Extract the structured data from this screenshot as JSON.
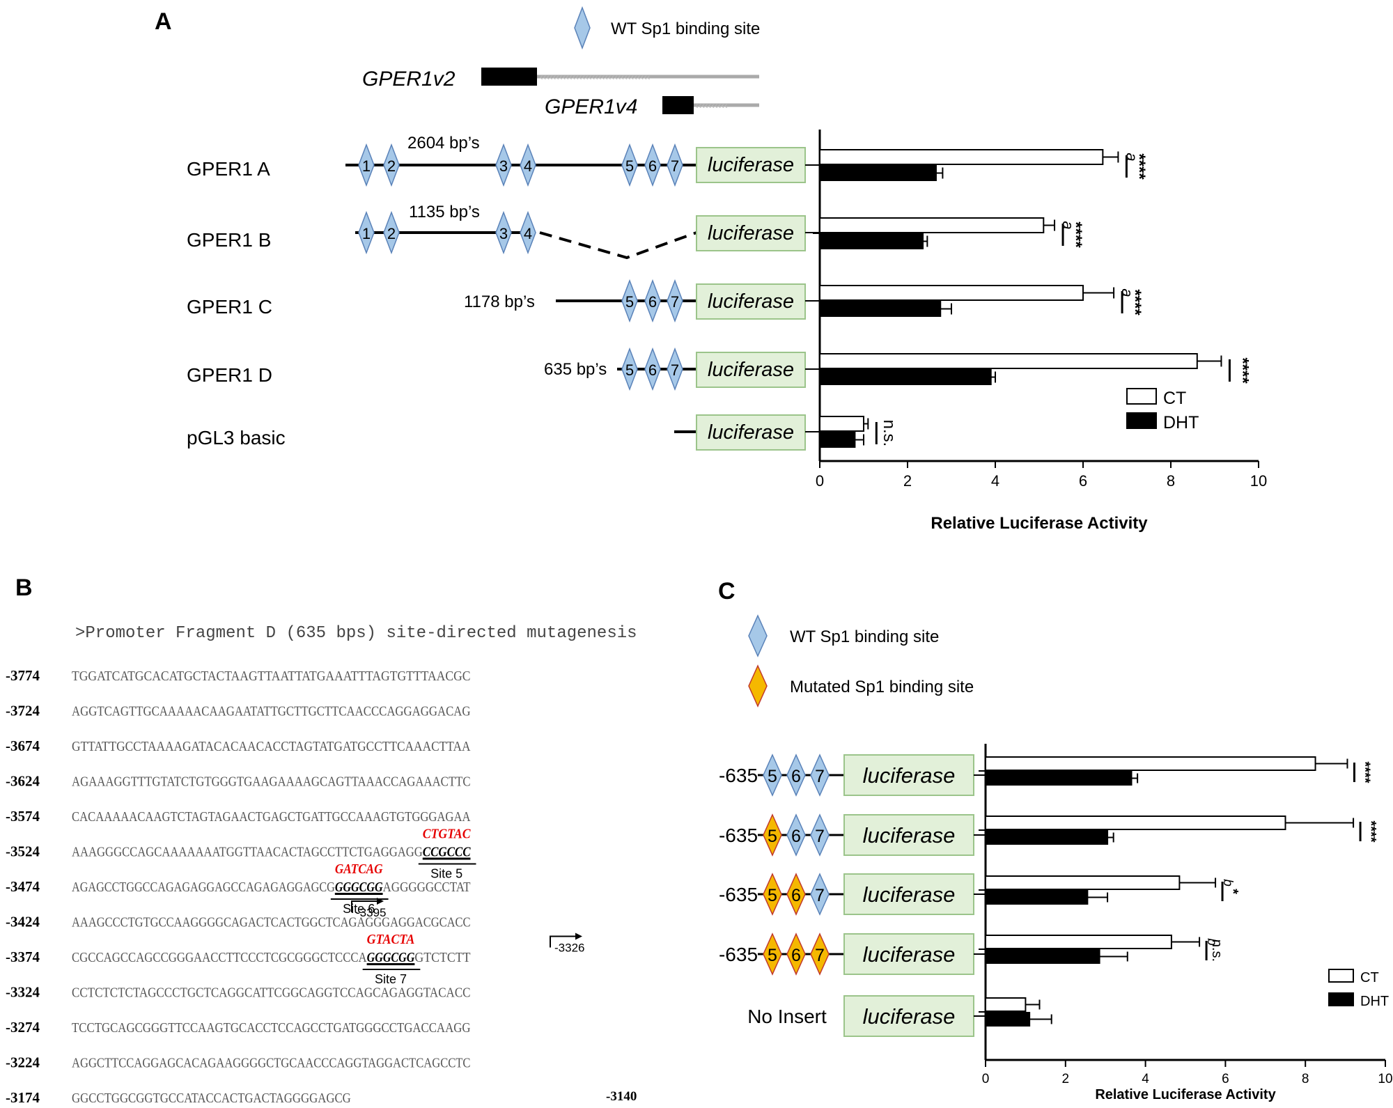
{
  "panels": {
    "a": "A",
    "b": "B",
    "c": "C"
  },
  "panel_a": {
    "legend_wt": "WT Sp1 binding site",
    "isoform_v2": "GPER1v2",
    "isoform_v4": "GPER1v4",
    "reporter": "luciferase",
    "construct_labels": [
      "GPER1 A",
      "GPER1 B",
      "GPER1 C",
      "GPER1 D",
      "pGL3 basic"
    ],
    "fragment_sizes": [
      "2604 bp’s",
      "1135 bp’s",
      "1178 bp’s",
      "635 bp’s"
    ],
    "site_numbers": [
      "1",
      "2",
      "3",
      "4",
      "5",
      "6",
      "7"
    ]
  },
  "panel_b": {
    "header": ">Promoter Fragment D (635 bps) site-directed mutagenesis",
    "rows": [
      {
        "pos": "-3774",
        "seq": "TGGATCATGCACATGCTACTAAGTTAATTATGAAATTTAGTGTTTAACGC"
      },
      {
        "pos": "-3724",
        "seq": "AGGTCAGTTGCAAAAACAAGAATATTGCTTGCTTCAACCCAGGAGGACAG"
      },
      {
        "pos": "-3674",
        "seq": "GTTATTGCCTAAAAGATACACAACACCTAGTATGATGCCTTCAAACTTAA"
      },
      {
        "pos": "-3624",
        "seq": "AGAAAGGTTTGTATCTGTGGGTGAAGAAAAGCAGTTAAACCAGAAACTTC"
      },
      {
        "pos": "-3574",
        "seq": "CACAAAAACAAGTCTAGTAGAACTGAGCTGATTGCCAAAGTGTGGGAGAA"
      },
      {
        "pos": "-3524",
        "seq": "AAAGGGCCAGCAAAAAAATGGTTAACACTAGCCTTCTGAGGAGG",
        "site": "CCGCCC"
      },
      {
        "pos": "-3474",
        "seq": "AGAGCCTGGCCAGAGAGGAGCCAGAGAGGAGCG",
        "site": "GGGCGG",
        "seq_after": "AGGGGGCCTAT"
      },
      {
        "pos": "-3424",
        "seq": "AAAGCCCTGTGCCAAGGGGCAGACTCACTGGCTCAGAGGGAGGACGCACC"
      },
      {
        "pos": "-3374",
        "seq": "CGCCAGCCAGCCGGGAACCTTCCCTCGCGGGCTCCCA",
        "site": "GGGCGG",
        "seq_after": "GTCTCTT"
      },
      {
        "pos": "-3324",
        "seq": "CCTCTCTCTAGCCCTGCTCAGGCATTCGGCAGGTCCAGCAGAGGTACACC"
      },
      {
        "pos": "-3274",
        "seq": "TCCTGCAGCGGGTTCCAAGTGCACCTCCAGCCTGATGGGCCTGACCAAGG"
      },
      {
        "pos": "-3224",
        "seq": "AGGCTTCCAGGAGCACAGAAGGGGCTGCAACCCAGGTAGGACTCAGCCTC"
      },
      {
        "pos": "-3174",
        "seq": "GGCCTGGCGGTGCCATACCACTGACTAGGGGAGCG"
      }
    ],
    "end_pos": "-3140",
    "mutations": [
      "CTGTAC",
      "GATCAG",
      "GTACTA"
    ],
    "site_labels": [
      "Site 5",
      "Site 6",
      "Site 7"
    ],
    "tss": [
      "-3395",
      "-3326"
    ]
  },
  "panel_c": {
    "legend_wt": "WT Sp1 binding site",
    "legend_mut": "Mutated Sp1 binding site",
    "reporter": "luciferase",
    "row_labels": [
      "-635",
      "-635",
      "-635",
      "-635",
      "No Insert"
    ],
    "sites": [
      "5",
      "6",
      "7"
    ],
    "mutated_counts": [
      0,
      1,
      2,
      3
    ]
  },
  "colors": {
    "wt_diamond": "#a6c8e8",
    "wt_stroke": "#5a82b8",
    "mut_diamond": "#f5b800",
    "mut_stroke": "#c0392b",
    "luciferase_box": "#e2f0d9",
    "luciferase_stroke": "#9bc48a",
    "ct": "#ffffff",
    "dht": "#000000",
    "mutation_text": "#e60000"
  },
  "chart_data": [
    {
      "type": "bar",
      "orientation": "horizontal",
      "categories": [
        "GPER1 A",
        "GPER1 B",
        "GPER1 C",
        "GPER1 D",
        "pGL3 basic"
      ],
      "series": [
        {
          "name": "CT",
          "values": [
            6.45,
            5.1,
            6.0,
            8.6,
            1.0
          ],
          "errors": [
            0.35,
            0.25,
            0.7,
            0.55,
            0.1
          ]
        },
        {
          "name": "DHT",
          "values": [
            2.65,
            2.35,
            2.75,
            3.9,
            0.8
          ],
          "errors": [
            0.15,
            0.1,
            0.25,
            0.1,
            0.2
          ]
        }
      ],
      "xlabel": "Relative Luciferase Activity",
      "xlim": [
        0,
        10
      ],
      "xticks": [
        "0",
        "2",
        "4",
        "6",
        "8",
        "10"
      ],
      "significance": [
        "****",
        "****",
        "****",
        "****",
        "n.s."
      ],
      "letters": [
        "a",
        "a",
        "a",
        "",
        ""
      ],
      "legend": "right"
    },
    {
      "type": "bar",
      "orientation": "horizontal",
      "categories": [
        "-635 WT",
        "-635 mut5",
        "-635 mut5,6",
        "-635 mut5,6,7",
        "No Insert"
      ],
      "series": [
        {
          "name": "CT",
          "values": [
            8.25,
            7.5,
            4.85,
            4.65,
            1.0
          ],
          "errors": [
            0.8,
            1.7,
            0.9,
            0.7,
            0.35
          ]
        },
        {
          "name": "DHT",
          "values": [
            3.65,
            3.05,
            2.55,
            2.85,
            1.1
          ],
          "errors": [
            0.15,
            0.15,
            0.5,
            0.7,
            0.55
          ]
        }
      ],
      "xlabel": "Relative Luciferase Activity",
      "xlim": [
        0,
        10
      ],
      "xticks": [
        "0",
        "2",
        "4",
        "6",
        "8",
        "10"
      ],
      "significance": [
        "****",
        "****",
        "*",
        "n.s.",
        ""
      ],
      "letters": [
        "",
        "",
        "b",
        "b",
        ""
      ],
      "legend": "bottom-right"
    }
  ]
}
